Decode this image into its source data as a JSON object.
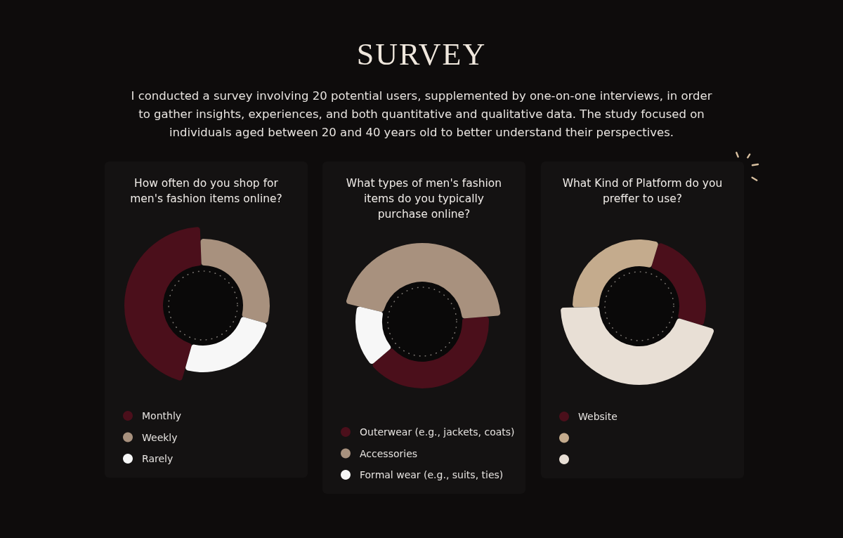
{
  "chart_data": [
    {
      "type": "other",
      "title": "SURVEY",
      "subtitle": "I conducted a survey involving 20 potential users, supplemented by one-on-one interviews, in order to gather insights, experiences, and both quantitative and qualitative data. The study focused on individuals aged between 20 and 40 years old to better understand their perspectives."
    },
    {
      "type": "donut",
      "title": "How often do you shop for men's fashion items online?",
      "categories": [
        "Monthly",
        "Weekly",
        "Rarely"
      ],
      "values": [
        45,
        30,
        25
      ],
      "colors": [
        "#4b0f1b",
        "#a8917e",
        "#f7f7f7"
      ],
      "legend": "bottom left"
    },
    {
      "type": "donut",
      "title": "What types of men's fashion items do you typically purchase online?",
      "categories": [
        "Outerwear (e.g., jackets, coats)",
        "Accessories",
        "Formal wear (e.g., suits, ties)"
      ],
      "values": [
        40,
        45,
        15
      ],
      "colors": [
        "#4b0f1b",
        "#a8917e",
        "#f7f7f7"
      ],
      "legend": "bottom left"
    },
    {
      "type": "donut",
      "title": "What Kind of Platform do you preffer to use?",
      "categories": [
        "Website",
        null,
        null
      ],
      "values": [
        25,
        30,
        45
      ],
      "colors": [
        "#4b0f1b",
        "#c4ab8d",
        "#e8dfd5"
      ],
      "legend": "bottom left"
    }
  ]
}
